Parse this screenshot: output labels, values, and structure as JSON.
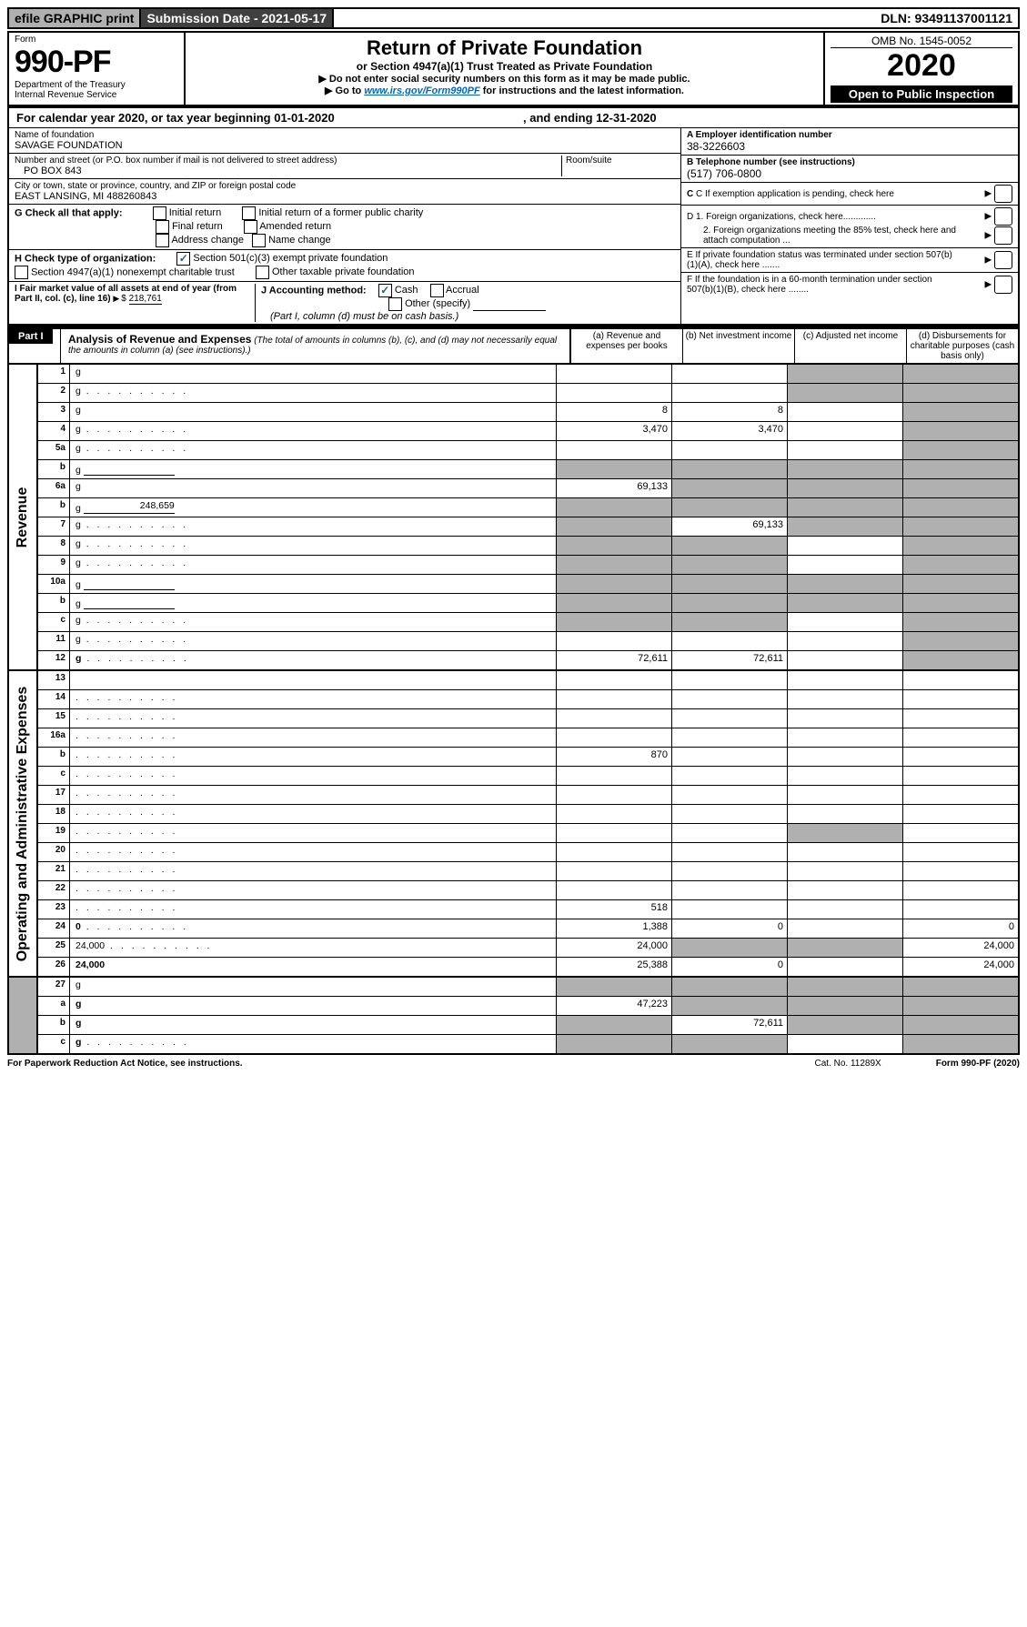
{
  "topbar": {
    "efile": "efile GRAPHIC print",
    "submission": "Submission Date - 2021-05-17",
    "dln": "DLN: 93491137001121"
  },
  "header": {
    "form_label": "Form",
    "form_no": "990-PF",
    "dept1": "Department of the Treasury",
    "dept2": "Internal Revenue Service",
    "title": "Return of Private Foundation",
    "subtitle": "or Section 4947(a)(1) Trust Treated as Private Foundation",
    "note1": "▶ Do not enter social security numbers on this form as it may be made public.",
    "note2_pre": "▶ Go to ",
    "note2_link": "www.irs.gov/Form990PF",
    "note2_post": " for instructions and the latest information.",
    "omb": "OMB No. 1545-0052",
    "year": "2020",
    "open": "Open to Public Inspection"
  },
  "cal": {
    "text": "For calendar year 2020, or tax year beginning 01-01-2020",
    "ending": ", and ending 12-31-2020"
  },
  "name_box": {
    "label": "Name of foundation",
    "name": "SAVAGE FOUNDATION",
    "addr_label": "Number and street (or P.O. box number if mail is not delivered to street address)",
    "addr": "PO BOX 843",
    "room_label": "Room/suite",
    "city_label": "City or town, state or province, country, and ZIP or foreign postal code",
    "city": "EAST LANSING, MI  488260843"
  },
  "ein": {
    "label": "A Employer identification number",
    "val": "38-3226603",
    "tel_label": "B Telephone number (see instructions)",
    "tel": "(517) 706-0800",
    "c": "C If exemption application is pending, check here",
    "d1": "D 1. Foreign organizations, check here.............",
    "d2": "2. Foreign organizations meeting the 85% test, check here and attach computation ...",
    "e": "E  If private foundation status was terminated under section 507(b)(1)(A), check here .......",
    "f": "F  If the foundation is in a 60-month termination under section 507(b)(1)(B), check here ........"
  },
  "g": {
    "label": "G Check all that apply:",
    "opts": [
      "Initial return",
      "Initial return of a former public charity",
      "Final return",
      "Amended return",
      "Address change",
      "Name change"
    ]
  },
  "h": {
    "label": "H Check type of organization:",
    "o1": "Section 501(c)(3) exempt private foundation",
    "o2": "Section 4947(a)(1) nonexempt charitable trust",
    "o3": "Other taxable private foundation"
  },
  "i": {
    "label": "I Fair market value of all assets at end of year (from Part II, col. (c), line 16)",
    "val": "218,761"
  },
  "j": {
    "label": "J Accounting method:",
    "cash": "Cash",
    "accrual": "Accrual",
    "other": "Other (specify)",
    "note": "(Part I, column (d) must be on cash basis.)"
  },
  "part1": {
    "label": "Part I",
    "title": "Analysis of Revenue and Expenses",
    "subtitle": "(The total of amounts in columns (b), (c), and (d) may not necessarily equal the amounts in column (a) (see instructions).)"
  },
  "cols": {
    "a": "(a)    Revenue and expenses per books",
    "b": "(b)   Net investment income",
    "c": "(c)   Adjusted net income",
    "d": "(d)   Disbursements for charitable purposes (cash basis only)"
  },
  "side": {
    "rev": "Revenue",
    "exp": "Operating and Administrative Expenses"
  },
  "lines": [
    {
      "n": "1",
      "d": "g",
      "a": "",
      "b": "",
      "c": "g"
    },
    {
      "n": "2",
      "d": "g",
      "a": "",
      "b": "",
      "c": "g",
      "dots": true,
      "bold_not": true
    },
    {
      "n": "3",
      "d": "g",
      "a": "8",
      "b": "8",
      "c": ""
    },
    {
      "n": "4",
      "d": "g",
      "a": "3,470",
      "b": "3,470",
      "c": "",
      "dots": true
    },
    {
      "n": "5a",
      "d": "g",
      "a": "",
      "b": "",
      "c": "",
      "dots": true
    },
    {
      "n": "b",
      "d": "g",
      "a": "g",
      "b": "g",
      "c": "g",
      "ul": true
    },
    {
      "n": "6a",
      "d": "g",
      "a": "69,133",
      "b": "g",
      "c": "g"
    },
    {
      "n": "b",
      "d": "g",
      "a": "g",
      "b": "g",
      "c": "g",
      "ul": true,
      "ulval": "248,659"
    },
    {
      "n": "7",
      "d": "g",
      "a": "g",
      "b": "69,133",
      "c": "g",
      "dots": true
    },
    {
      "n": "8",
      "d": "g",
      "a": "g",
      "b": "g",
      "c": "",
      "dots": true
    },
    {
      "n": "9",
      "d": "g",
      "a": "g",
      "b": "g",
      "c": "",
      "dots": true
    },
    {
      "n": "10a",
      "d": "g",
      "a": "g",
      "b": "g",
      "c": "g",
      "ul": true
    },
    {
      "n": "b",
      "d": "g",
      "a": "g",
      "b": "g",
      "c": "g",
      "dots": true,
      "ul": true
    },
    {
      "n": "c",
      "d": "g",
      "a": "g",
      "b": "g",
      "c": "",
      "dots": true
    },
    {
      "n": "11",
      "d": "g",
      "a": "",
      "b": "",
      "c": "",
      "dots": true
    },
    {
      "n": "12",
      "d": "g",
      "a": "72,611",
      "b": "72,611",
      "c": "",
      "dots": true,
      "bold": true
    }
  ],
  "exp_lines": [
    {
      "n": "13",
      "d": "",
      "a": "",
      "b": "",
      "c": ""
    },
    {
      "n": "14",
      "d": "",
      "a": "",
      "b": "",
      "c": "",
      "dots": true
    },
    {
      "n": "15",
      "d": "",
      "a": "",
      "b": "",
      "c": "",
      "dots": true
    },
    {
      "n": "16a",
      "d": "",
      "a": "",
      "b": "",
      "c": "",
      "dots": true
    },
    {
      "n": "b",
      "d": "",
      "a": "870",
      "b": "",
      "c": "",
      "dots": true
    },
    {
      "n": "c",
      "d": "",
      "a": "",
      "b": "",
      "c": "",
      "dots": true
    },
    {
      "n": "17",
      "d": "",
      "a": "",
      "b": "",
      "c": "",
      "dots": true
    },
    {
      "n": "18",
      "d": "",
      "a": "",
      "b": "",
      "c": "",
      "dots": true
    },
    {
      "n": "19",
      "d": "",
      "a": "",
      "b": "",
      "c": "g",
      "dots": true
    },
    {
      "n": "20",
      "d": "",
      "a": "",
      "b": "",
      "c": "",
      "dots": true
    },
    {
      "n": "21",
      "d": "",
      "a": "",
      "b": "",
      "c": "",
      "dots": true
    },
    {
      "n": "22",
      "d": "",
      "a": "",
      "b": "",
      "c": "",
      "dots": true
    },
    {
      "n": "23",
      "d": "",
      "a": "518",
      "b": "",
      "c": "",
      "dots": true
    },
    {
      "n": "24",
      "d": "0",
      "a": "1,388",
      "b": "0",
      "c": "",
      "dots": true,
      "bold": true
    },
    {
      "n": "25",
      "d": "24,000",
      "a": "24,000",
      "b": "g",
      "c": "g",
      "dots": true
    },
    {
      "n": "26",
      "d": "24,000",
      "a": "25,388",
      "b": "0",
      "c": "",
      "bold": true
    }
  ],
  "final_lines": [
    {
      "n": "27",
      "d": "g",
      "a": "g",
      "b": "g",
      "c": "g"
    },
    {
      "n": "a",
      "d": "g",
      "a": "47,223",
      "b": "g",
      "c": "g",
      "bold": true
    },
    {
      "n": "b",
      "d": "g",
      "a": "g",
      "b": "72,611",
      "c": "g",
      "bold": true
    },
    {
      "n": "c",
      "d": "g",
      "a": "g",
      "b": "g",
      "c": "",
      "bold": true,
      "dots": true
    }
  ],
  "footer": {
    "left": "For Paperwork Reduction Act Notice, see instructions.",
    "mid": "Cat. No. 11289X",
    "right": "Form 990-PF (2020)"
  }
}
